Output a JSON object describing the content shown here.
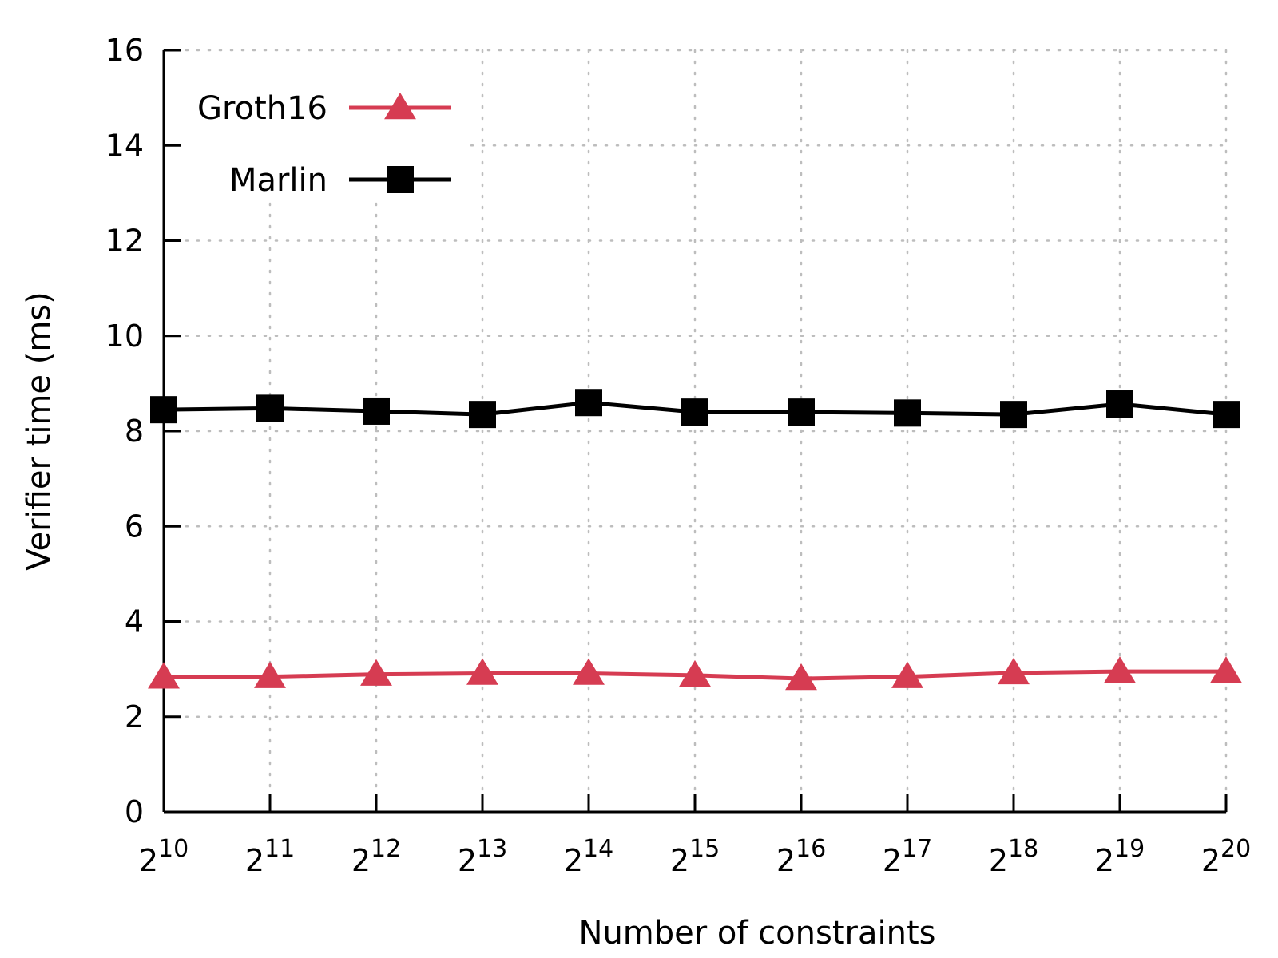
{
  "chart_data": {
    "type": "line",
    "title": "",
    "xlabel": "Number of constraints",
    "ylabel": "Verifier time (ms)",
    "x": [
      10,
      11,
      12,
      13,
      14,
      15,
      16,
      17,
      18,
      19,
      20
    ],
    "x_tick_labels": [
      {
        "base": "2",
        "exp": "10"
      },
      {
        "base": "2",
        "exp": "11"
      },
      {
        "base": "2",
        "exp": "12"
      },
      {
        "base": "2",
        "exp": "13"
      },
      {
        "base": "2",
        "exp": "14"
      },
      {
        "base": "2",
        "exp": "15"
      },
      {
        "base": "2",
        "exp": "16"
      },
      {
        "base": "2",
        "exp": "17"
      },
      {
        "base": "2",
        "exp": "18"
      },
      {
        "base": "2",
        "exp": "19"
      },
      {
        "base": "2",
        "exp": "20"
      }
    ],
    "x_scale": "log2",
    "ylim": [
      0,
      16
    ],
    "y_ticks": [
      0,
      2,
      4,
      6,
      8,
      10,
      12,
      14,
      16
    ],
    "grid": true,
    "legend_position": "top-left",
    "series": [
      {
        "name": "Groth16",
        "color": "#d63c52",
        "marker": "triangle",
        "values": [
          2.83,
          2.84,
          2.89,
          2.91,
          2.91,
          2.87,
          2.8,
          2.84,
          2.92,
          2.95,
          2.95
        ]
      },
      {
        "name": "Marlin",
        "color": "#000000",
        "marker": "square",
        "values": [
          8.45,
          8.48,
          8.42,
          8.35,
          8.6,
          8.4,
          8.4,
          8.38,
          8.35,
          8.57,
          8.35
        ]
      }
    ]
  }
}
